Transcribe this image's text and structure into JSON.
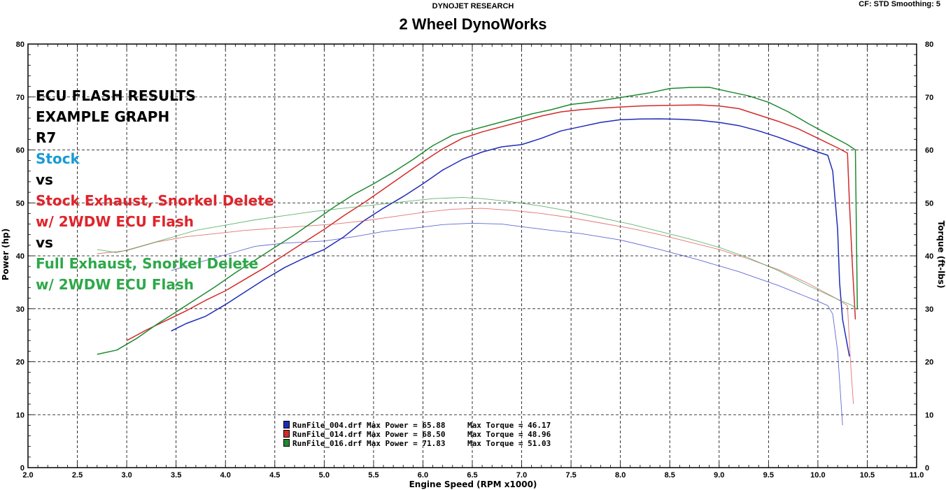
{
  "header": {
    "research": "DYNOJET RESEARCH",
    "title": "2 Wheel DynoWorks",
    "cf": "CF: STD   Smoothing: 5"
  },
  "notes": [
    {
      "text": "ECU FLASH RESULTS",
      "color": "#000000"
    },
    {
      "text": "EXAMPLE GRAPH",
      "color": "#000000"
    },
    {
      "text": "R7",
      "color": "#000000"
    },
    {
      "text": "Stock",
      "color": "#1a9ad6"
    },
    {
      "text": "vs",
      "color": "#000000"
    },
    {
      "text": "Stock Exhaust, Snorkel Delete",
      "color": "#e0242b"
    },
    {
      "text": "w/ 2WDW ECU Flash",
      "color": "#e0242b"
    },
    {
      "text": "vs",
      "color": "#000000"
    },
    {
      "text": "Full Exhaust, Snorkel Delete",
      "color": "#2ea84a"
    },
    {
      "text": "w/ 2WDW ECU Flash",
      "color": "#2ea84a"
    }
  ],
  "legend": [
    {
      "color": "#1f2bb8",
      "run": "RunFile_004.drf Max Power = 65.88",
      "torque": "Max Torque = 46.17"
    },
    {
      "color": "#d42a2a",
      "run": "RunFile_014.drf Max Power = 68.50",
      "torque": "Max Torque = 48.96"
    },
    {
      "color": "#1f8a32",
      "run": "RunFile_016.drf Max Power = 71.83",
      "torque": "Max Torque = 51.03"
    }
  ],
  "chart_data": {
    "type": "line",
    "xlabel": "Engine Speed (RPM x1000)",
    "ylabel": "Power (hp)",
    "y2label": "Torque (ft-lbs)",
    "xlim": [
      2.0,
      11.0
    ],
    "ylim": [
      0,
      80
    ],
    "y2lim": [
      0,
      80
    ],
    "xticks": [
      "2.0",
      "2.5",
      "3.0",
      "3.5",
      "4.0",
      "4.5",
      "5.0",
      "5.5",
      "6.0",
      "6.5",
      "7.0",
      "7.5",
      "8.0",
      "8.5",
      "9.0",
      "9.5",
      "10.0",
      "10.5",
      "11.0"
    ],
    "yticks": [
      "0",
      "10",
      "20",
      "30",
      "40",
      "50",
      "60",
      "70",
      "80"
    ],
    "grid": true,
    "series": [
      {
        "name": "RunFile_004.drf",
        "kind": "power",
        "color": "#1f2bb8",
        "x": [
          3.45,
          3.6,
          3.8,
          4.0,
          4.2,
          4.4,
          4.6,
          4.8,
          5.0,
          5.2,
          5.4,
          5.6,
          5.8,
          6.0,
          6.2,
          6.4,
          6.6,
          6.8,
          7.0,
          7.2,
          7.4,
          7.6,
          7.8,
          8.0,
          8.2,
          8.4,
          8.6,
          8.8,
          9.0,
          9.2,
          9.4,
          9.6,
          9.8,
          10.0,
          10.1,
          10.15,
          10.2,
          10.22,
          10.25,
          10.28,
          10.3,
          10.32
        ],
        "y": [
          25.8,
          27.2,
          28.6,
          30.8,
          33.2,
          35.6,
          37.8,
          39.6,
          41.2,
          43.6,
          46.6,
          49.0,
          51.2,
          53.6,
          56.2,
          58.2,
          59.6,
          60.6,
          61.0,
          62.2,
          63.6,
          64.4,
          65.2,
          65.7,
          65.85,
          65.88,
          65.8,
          65.6,
          65.2,
          64.6,
          63.6,
          62.4,
          61.0,
          59.6,
          59.0,
          56.0,
          45.0,
          35.0,
          28.0,
          25.0,
          23.0,
          21.0
        ]
      },
      {
        "name": "RunFile_004.drf",
        "kind": "torque",
        "color": "#3a42c8",
        "x": [
          3.45,
          3.7,
          4.0,
          4.3,
          4.6,
          5.0,
          5.3,
          5.6,
          5.9,
          6.2,
          6.5,
          6.8,
          7.0,
          7.3,
          7.6,
          8.0,
          8.4,
          8.8,
          9.2,
          9.6,
          10.0,
          10.1,
          10.15,
          10.2,
          10.25
        ],
        "y": [
          37.2,
          38.6,
          40.2,
          41.8,
          42.4,
          42.8,
          43.6,
          44.6,
          45.2,
          45.9,
          46.17,
          46.0,
          45.5,
          44.8,
          44.2,
          43.0,
          41.2,
          39.2,
          37.0,
          34.4,
          31.4,
          30.6,
          29.0,
          22.0,
          8.0
        ]
      },
      {
        "name": "RunFile_014.drf",
        "kind": "power",
        "color": "#d42a2a",
        "x": [
          3.0,
          3.2,
          3.4,
          3.6,
          3.8,
          4.0,
          4.2,
          4.4,
          4.6,
          4.8,
          5.0,
          5.2,
          5.4,
          5.6,
          5.8,
          6.0,
          6.2,
          6.4,
          6.6,
          6.8,
          7.0,
          7.2,
          7.4,
          7.6,
          7.8,
          8.0,
          8.2,
          8.4,
          8.6,
          8.8,
          9.0,
          9.2,
          9.4,
          9.6,
          9.8,
          10.0,
          10.2,
          10.3,
          10.32,
          10.35,
          10.38
        ],
        "y": [
          24.0,
          26.0,
          27.8,
          29.6,
          31.6,
          33.4,
          35.6,
          37.8,
          40.2,
          42.6,
          45.0,
          47.6,
          50.0,
          52.6,
          55.2,
          57.8,
          60.2,
          62.2,
          63.4,
          64.4,
          65.4,
          66.4,
          67.2,
          67.6,
          67.9,
          68.1,
          68.3,
          68.4,
          68.45,
          68.5,
          68.3,
          67.8,
          66.6,
          65.4,
          64.0,
          62.2,
          60.4,
          59.4,
          50.0,
          38.0,
          28.0
        ]
      },
      {
        "name": "RunFile_014.drf",
        "kind": "torque",
        "color": "#d9534f",
        "x": [
          2.7,
          3.0,
          3.3,
          3.6,
          3.9,
          4.2,
          4.5,
          4.8,
          5.1,
          5.4,
          5.7,
          6.0,
          6.3,
          6.6,
          6.9,
          7.2,
          7.5,
          7.8,
          8.1,
          8.4,
          8.7,
          9.0,
          9.3,
          9.6,
          9.9,
          10.2,
          10.3,
          10.33,
          10.36
        ],
        "y": [
          40.4,
          41.0,
          42.6,
          43.6,
          44.2,
          44.8,
          45.2,
          45.6,
          46.0,
          46.6,
          47.4,
          48.2,
          48.8,
          48.96,
          48.6,
          48.0,
          47.2,
          46.2,
          45.2,
          44.0,
          42.6,
          41.2,
          39.4,
          37.4,
          34.8,
          31.8,
          30.6,
          20.0,
          12.0
        ]
      },
      {
        "name": "RunFile_016.drf",
        "kind": "power",
        "color": "#1f8a32",
        "x": [
          2.7,
          2.9,
          3.1,
          3.3,
          3.5,
          3.7,
          3.9,
          4.1,
          4.3,
          4.5,
          4.7,
          4.9,
          5.1,
          5.3,
          5.5,
          5.7,
          5.9,
          6.1,
          6.3,
          6.5,
          6.7,
          6.9,
          7.1,
          7.3,
          7.5,
          7.7,
          7.9,
          8.1,
          8.3,
          8.5,
          8.7,
          8.9,
          9.1,
          9.3,
          9.5,
          9.7,
          9.9,
          10.1,
          10.3,
          10.38,
          10.4
        ],
        "y": [
          21.4,
          22.2,
          24.4,
          27.0,
          29.4,
          31.8,
          34.2,
          36.8,
          39.2,
          41.6,
          44.0,
          46.6,
          49.2,
          51.6,
          53.6,
          55.8,
          58.2,
          60.8,
          62.8,
          63.8,
          64.8,
          65.8,
          66.8,
          67.6,
          68.6,
          69.0,
          69.6,
          70.2,
          70.8,
          71.6,
          71.8,
          71.83,
          71.0,
          70.2,
          69.0,
          67.2,
          65.0,
          63.0,
          61.0,
          60.0,
          30.0
        ]
      },
      {
        "name": "RunFile_016.drf",
        "kind": "torque",
        "color": "#3aa24e",
        "x": [
          2.7,
          2.9,
          3.1,
          3.4,
          3.7,
          4.0,
          4.3,
          4.6,
          4.9,
          5.2,
          5.5,
          5.8,
          6.1,
          6.4,
          6.6,
          6.9,
          7.2,
          7.5,
          7.8,
          8.1,
          8.4,
          8.7,
          9.0,
          9.3,
          9.6,
          9.9,
          10.2,
          10.35,
          10.4
        ],
        "y": [
          41.2,
          40.6,
          41.6,
          43.2,
          44.8,
          45.8,
          46.8,
          47.6,
          48.4,
          49.0,
          49.6,
          50.2,
          50.8,
          51.03,
          50.8,
          50.2,
          49.4,
          48.4,
          47.2,
          46.0,
          44.6,
          43.2,
          41.6,
          39.6,
          37.2,
          34.4,
          31.8,
          30.6,
          29.8
        ]
      }
    ]
  }
}
